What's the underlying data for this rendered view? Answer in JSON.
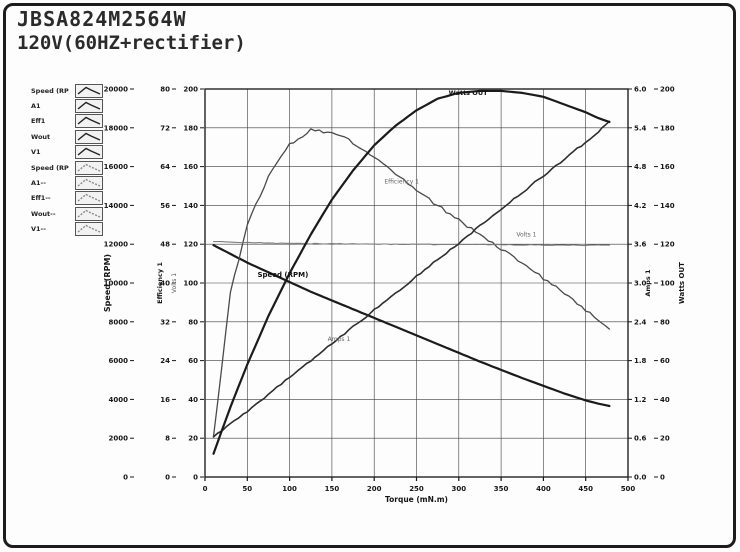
{
  "window": {
    "title_line1": "JBSA824M2564W",
    "title_line2": "120V(60HZ+rectifier)"
  },
  "legend": {
    "items": [
      {
        "label": "Speed (RP",
        "style": "solid"
      },
      {
        "label": "A1",
        "style": "solid"
      },
      {
        "label": "Eff1",
        "style": "solid"
      },
      {
        "label": "Wout",
        "style": "solid"
      },
      {
        "label": "V1",
        "style": "solid"
      },
      {
        "label": "Speed (RP",
        "style": "dashed"
      },
      {
        "label": "A1--",
        "style": "dashed"
      },
      {
        "label": "Eff1--",
        "style": "dashed"
      },
      {
        "label": "Wout--",
        "style": "dashed"
      },
      {
        "label": "V1--",
        "style": "dashed"
      }
    ]
  },
  "chart_data": {
    "type": "line",
    "xlabel": "Torque (mN.m)",
    "xlim": [
      0,
      500
    ],
    "x_tick_step": 50,
    "grid": true,
    "axes": {
      "left": [
        {
          "id": "speed",
          "title": "Speed (RPM)",
          "min": 0,
          "max": 20000,
          "step": 2000,
          "decimals": 0
        },
        {
          "id": "eff",
          "title": "Efficiency 1",
          "min": 0,
          "max": 80,
          "step": 8,
          "decimals": 0
        },
        {
          "id": "volts",
          "title": "Volts 1",
          "min": 0,
          "max": 200,
          "step": 20,
          "decimals": 0
        }
      ],
      "right": [
        {
          "id": "amps",
          "title": "Amps 1",
          "min": 0,
          "max": 6.0,
          "step": 0.6,
          "decimals": 1
        },
        {
          "id": "watts",
          "title": "Watts OUT",
          "min": 0,
          "max": 200,
          "step": 20,
          "decimals": 0
        }
      ]
    },
    "x": [
      10,
      30,
      50,
      75,
      100,
      125,
      150,
      175,
      200,
      225,
      250,
      275,
      300,
      325,
      350,
      375,
      400,
      425,
      450,
      465,
      478
    ],
    "series": [
      {
        "name": "Speed (RPM)",
        "axis": "speed",
        "width": 2.2,
        "color": "#1b1b1b",
        "noise": 0,
        "values": [
          11950,
          11500,
          11050,
          10550,
          10050,
          9550,
          9100,
          8650,
          8200,
          7750,
          7300,
          6850,
          6400,
          5950,
          5520,
          5100,
          4700,
          4300,
          3950,
          3780,
          3660
        ]
      },
      {
        "name": "Efficiency 1",
        "axis": "eff",
        "width": 1.3,
        "color": "#4a4a4a",
        "noise": 1.6,
        "values": [
          8,
          38,
          52,
          62,
          68.5,
          71.5,
          71,
          69,
          66,
          62.5,
          59,
          56,
          53,
          50,
          47,
          44,
          41,
          38,
          34.5,
          32.5,
          30.5
        ]
      },
      {
        "name": "Volts 1",
        "axis": "volts",
        "width": 1.1,
        "color": "#7d7d7d",
        "noise": 0.4,
        "values": [
          121.5,
          121,
          120.8,
          120.6,
          120.4,
          120.3,
          120.2,
          120.1,
          120,
          120,
          119.9,
          119.9,
          119.8,
          119.8,
          119.7,
          119.7,
          119.6,
          119.6,
          119.5,
          119.5,
          119.5
        ]
      },
      {
        "name": "Amps 1",
        "axis": "amps",
        "width": 1.6,
        "color": "#2e2e2e",
        "noise": 0.9,
        "values": [
          0.62,
          0.82,
          1.02,
          1.28,
          1.54,
          1.8,
          2.06,
          2.32,
          2.58,
          2.84,
          3.1,
          3.36,
          3.62,
          3.88,
          4.14,
          4.4,
          4.66,
          4.92,
          5.18,
          5.34,
          5.5
        ]
      },
      {
        "name": "Watts OUT",
        "axis": "watts",
        "width": 2.2,
        "color": "#1b1b1b",
        "noise": 0,
        "values": [
          12,
          36,
          58,
          83,
          105,
          125,
          143,
          158,
          171,
          181,
          189,
          195,
          198,
          199,
          199,
          198,
          196,
          192,
          188,
          185,
          183
        ]
      }
    ],
    "curve_labels": [
      {
        "text": "Speed (RPM)",
        "x": 62,
        "axis": "speed",
        "y": 10300,
        "bold": true,
        "size": 7
      },
      {
        "text": "Efficiency 1",
        "x": 212,
        "axis": "eff",
        "y": 60.5,
        "bold": false,
        "size": 6
      },
      {
        "text": "Volts 1",
        "x": 368,
        "axis": "volts",
        "y": 124,
        "bold": false,
        "size": 6
      },
      {
        "text": "Amps 1",
        "x": 145,
        "axis": "amps",
        "y": 2.1,
        "bold": false,
        "size": 6
      },
      {
        "text": "Watts OUT",
        "x": 288,
        "axis": "watts",
        "y": 197,
        "bold": true,
        "size": 6.5
      }
    ]
  }
}
